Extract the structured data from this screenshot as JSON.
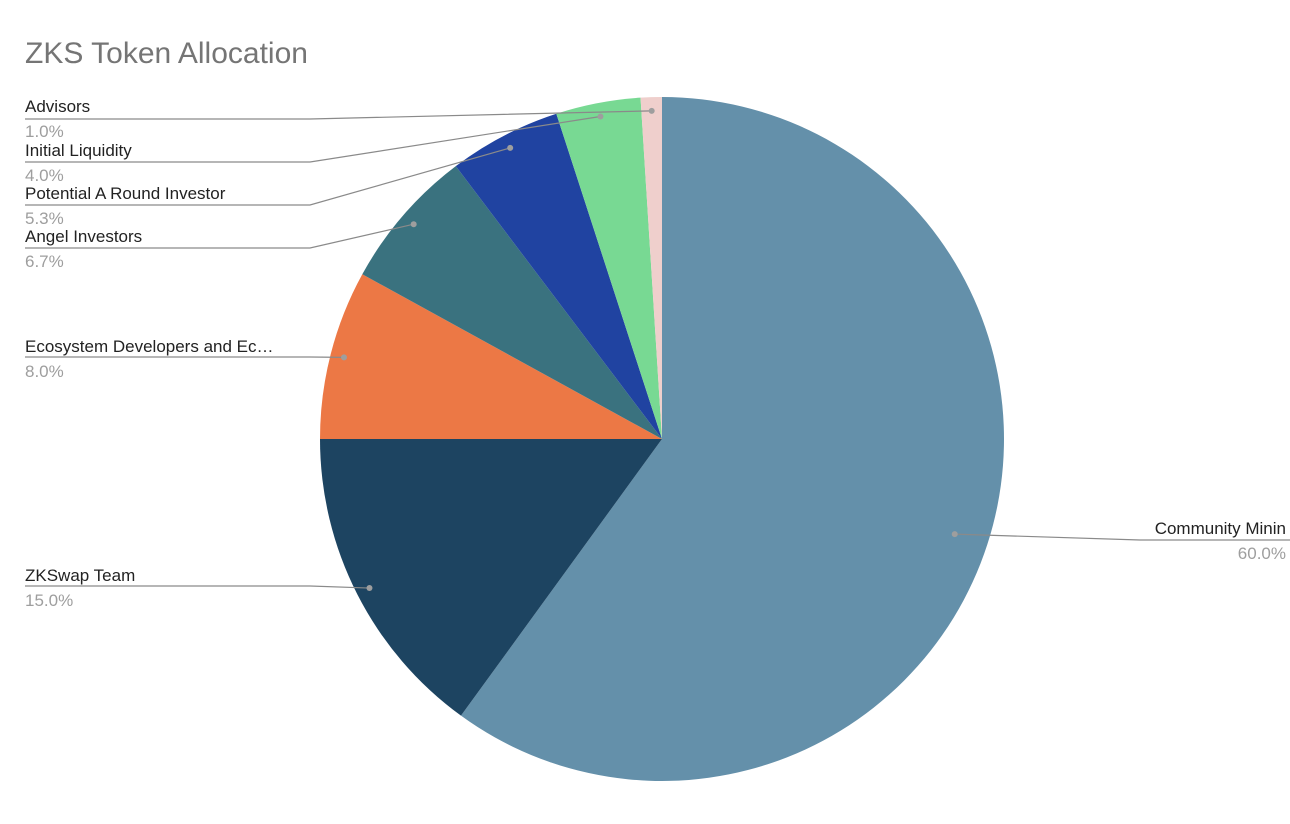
{
  "chart_data": {
    "type": "pie",
    "title": "ZKS Token Allocation",
    "slices": [
      {
        "name": "Community Mining",
        "display_name": "Community Minin",
        "value": 60.0,
        "label": "60.0%",
        "color": "#6490aa"
      },
      {
        "name": "ZKSwap Team",
        "display_name": "ZKSwap Team",
        "value": 15.0,
        "label": "15.0%",
        "color": "#1d4461"
      },
      {
        "name": "Ecosystem Developers and Ec…",
        "display_name": "Ecosystem Developers and Ec…",
        "value": 8.0,
        "label": "8.0%",
        "color": "#ec7845"
      },
      {
        "name": "Angel Investors",
        "display_name": "Angel Investors",
        "value": 6.7,
        "label": "6.7%",
        "color": "#3a727f"
      },
      {
        "name": "Potential A Round Investor",
        "display_name": "Potential A Round Investor",
        "value": 5.3,
        "label": "5.3%",
        "color": "#2043a1"
      },
      {
        "name": "Initial Liquidity",
        "display_name": "Initial Liquidity",
        "value": 4.0,
        "label": "4.0%",
        "color": "#78d993"
      },
      {
        "name": "Advisors",
        "display_name": "Advisors",
        "value": 1.0,
        "label": "1.0%",
        "color": "#efcfcc"
      }
    ],
    "start_angle": "12 o'clock",
    "direction": "clockwise",
    "legend": "none",
    "label_style": "leader-lines"
  }
}
